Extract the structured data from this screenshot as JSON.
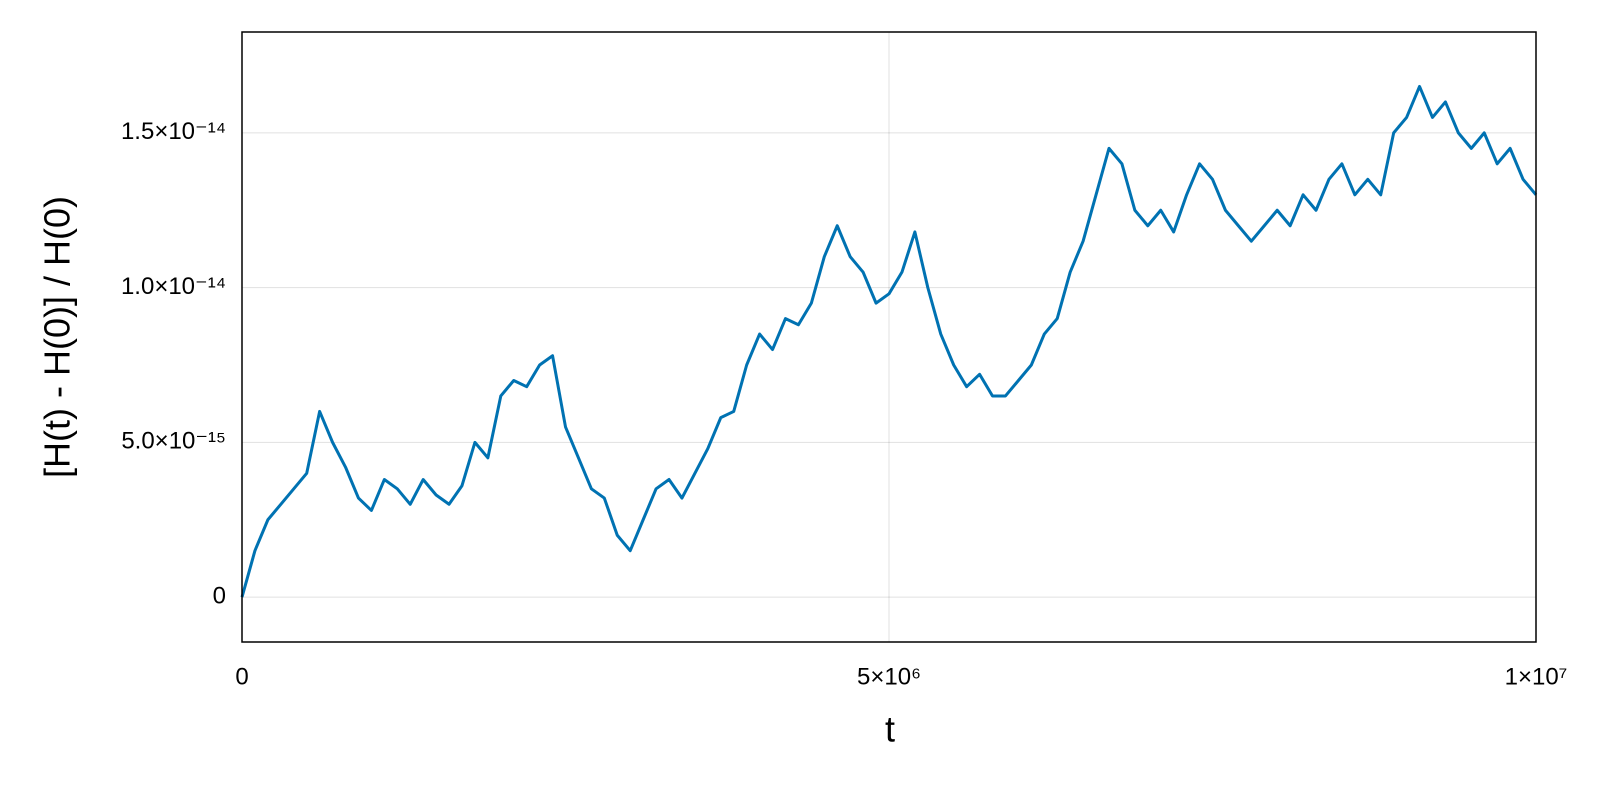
{
  "chart_data": {
    "type": "line",
    "xlabel": "t",
    "ylabel": "[H(t) - H(0)] / H(0)",
    "color": "#0072b2",
    "grid": true,
    "xlim": [
      0,
      10000000
    ],
    "xticks": [
      0,
      {
        "value": 5000000,
        "label": "5×10⁶"
      },
      {
        "value": 10000000,
        "label": "1×10⁷"
      }
    ],
    "ylim": [
      -1.45e-15,
      1.826e-14
    ],
    "yticks": [
      0,
      {
        "value": 5e-15,
        "label": "5.0×10⁻¹⁵"
      },
      {
        "value": 1e-14,
        "label": "1.0×10⁻¹⁴"
      },
      {
        "value": 1.5e-14,
        "label": "1.5×10⁻¹⁴"
      }
    ],
    "x": [
      0,
      100000,
      200000,
      300000,
      400000,
      500000,
      600000,
      700000,
      800000,
      900000,
      1000000,
      1100000,
      1200000,
      1300000,
      1400000,
      1500000,
      1600000,
      1700000,
      1800000,
      1900000,
      2000000,
      2100000,
      2200000,
      2300000,
      2400000,
      2500000,
      2600000,
      2700000,
      2800000,
      2900000,
      3000000,
      3100000,
      3200000,
      3300000,
      3400000,
      3500000,
      3600000,
      3700000,
      3800000,
      3900000,
      4000000,
      4100000,
      4200000,
      4300000,
      4400000,
      4500000,
      4600000,
      4700000,
      4800000,
      4900000,
      5000000,
      5100000,
      5200000,
      5300000,
      5400000,
      5500000,
      5600000,
      5700000,
      5800000,
      5900000,
      6000000,
      6100000,
      6200000,
      6300000,
      6400000,
      6500000,
      6600000,
      6700000,
      6800000,
      6900000,
      7000000,
      7100000,
      7200000,
      7300000,
      7400000,
      7500000,
      7600000,
      7700000,
      7800000,
      7900000,
      8000000,
      8100000,
      8200000,
      8300000,
      8400000,
      8500000,
      8600000,
      8700000,
      8800000,
      8900000,
      9000000,
      9100000,
      9200000,
      9300000,
      9400000,
      9500000,
      9600000,
      9700000,
      9800000,
      9900000,
      10000000
    ],
    "values": [
      0,
      1.5e-15,
      2.5e-15,
      3e-15,
      3.5e-15,
      4e-15,
      6e-15,
      5e-15,
      4.2e-15,
      3.2e-15,
      2.8e-15,
      3.8e-15,
      3.5e-15,
      3e-15,
      3.8e-15,
      3.3e-15,
      3e-15,
      3.6e-15,
      5e-15,
      4.5e-15,
      6.5e-15,
      7e-15,
      6.8e-15,
      7.5e-15,
      7.8e-15,
      5.5e-15,
      4.5e-15,
      3.5e-15,
      3.2e-15,
      2e-15,
      1.5e-15,
      2.5e-15,
      3.5e-15,
      3.8e-15,
      3.2e-15,
      4e-15,
      4.8e-15,
      5.8e-15,
      6e-15,
      7.5e-15,
      8.5e-15,
      8e-15,
      9e-15,
      8.8e-15,
      9.5e-15,
      1.1e-14,
      1.2e-14,
      1.1e-14,
      1.05e-14,
      9.5e-15,
      9.8e-15,
      1.05e-14,
      1.18e-14,
      1e-14,
      8.5e-15,
      7.5e-15,
      6.8e-15,
      7.2e-15,
      6.5e-15,
      6.5e-15,
      7e-15,
      7.5e-15,
      8.5e-15,
      9e-15,
      1.05e-14,
      1.15e-14,
      1.3e-14,
      1.45e-14,
      1.4e-14,
      1.25e-14,
      1.2e-14,
      1.25e-14,
      1.18e-14,
      1.3e-14,
      1.4e-14,
      1.35e-14,
      1.25e-14,
      1.2e-14,
      1.15e-14,
      1.2e-14,
      1.25e-14,
      1.2e-14,
      1.3e-14,
      1.25e-14,
      1.35e-14,
      1.4e-14,
      1.3e-14,
      1.35e-14,
      1.3e-14,
      1.5e-14,
      1.55e-14,
      1.65e-14,
      1.55e-14,
      1.6e-14,
      1.5e-14,
      1.45e-14,
      1.5e-14,
      1.4e-14,
      1.45e-14,
      1.35e-14,
      1.3e-14
    ]
  }
}
